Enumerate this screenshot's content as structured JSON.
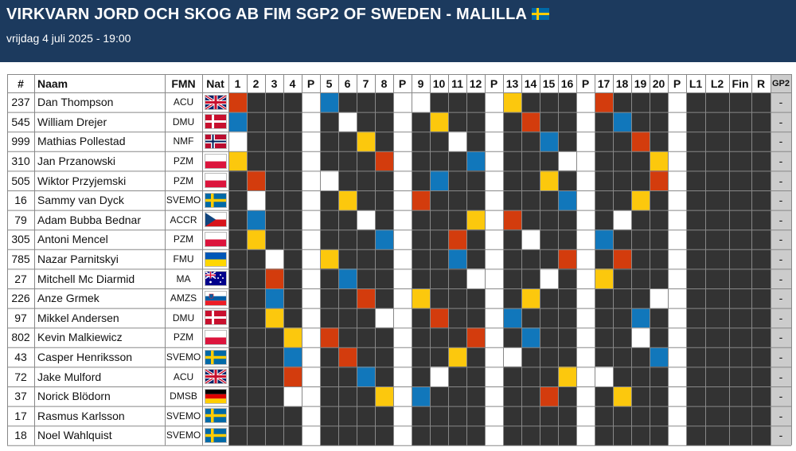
{
  "event": {
    "title": "VIRKVARN JORD OCH SKOG AB FIM SGP2 OF SWEDEN - MALILLA",
    "date": "vrijdag 4 juli 2025 - 19:00"
  },
  "table": {
    "headers": {
      "num": "#",
      "name": "Naam",
      "fmn": "FMN",
      "nat": "Nat",
      "l1": "L1",
      "l2": "L2",
      "fin": "Fin",
      "r": "R",
      "gp2": "GP2"
    },
    "heats": [
      {
        "label": "1",
        "type": "heat"
      },
      {
        "label": "2",
        "type": "heat"
      },
      {
        "label": "3",
        "type": "heat"
      },
      {
        "label": "4",
        "type": "heat"
      },
      {
        "label": "P",
        "type": "pause"
      },
      {
        "label": "5",
        "type": "heat"
      },
      {
        "label": "6",
        "type": "heat"
      },
      {
        "label": "7",
        "type": "heat"
      },
      {
        "label": "8",
        "type": "heat"
      },
      {
        "label": "P",
        "type": "pause"
      },
      {
        "label": "9",
        "type": "heat"
      },
      {
        "label": "10",
        "type": "heat"
      },
      {
        "label": "11",
        "type": "heat"
      },
      {
        "label": "12",
        "type": "heat"
      },
      {
        "label": "P",
        "type": "pause"
      },
      {
        "label": "13",
        "type": "heat"
      },
      {
        "label": "14",
        "type": "heat"
      },
      {
        "label": "15",
        "type": "heat"
      },
      {
        "label": "16",
        "type": "heat"
      },
      {
        "label": "P",
        "type": "pause"
      },
      {
        "label": "17",
        "type": "heat"
      },
      {
        "label": "18",
        "type": "heat"
      },
      {
        "label": "19",
        "type": "heat"
      },
      {
        "label": "20",
        "type": "heat"
      },
      {
        "label": "P",
        "type": "pause"
      }
    ],
    "colors": {
      "R": "#d33c0d",
      "B": "#1177bb",
      "Y": "#fcc80d",
      "W": "#ffffff",
      "D": "#333333",
      "border": "#888888"
    },
    "riders": [
      {
        "num": "237",
        "name": "Dan Thompson",
        "fmn": "ACU",
        "nat": "gb",
        "gate": {
          "1": "R",
          "5": "B",
          "9": "W",
          "13": "Y",
          "17": "R"
        },
        "gp2": "-"
      },
      {
        "num": "545",
        "name": "William Drejer",
        "fmn": "DMU",
        "nat": "dk",
        "gate": {
          "1": "B",
          "6": "W",
          "10": "Y",
          "14": "R",
          "18": "B"
        },
        "gp2": "-"
      },
      {
        "num": "999",
        "name": "Mathias Pollestad",
        "fmn": "NMF",
        "nat": "no",
        "gate": {
          "1": "W",
          "7": "Y",
          "11": "W",
          "15": "B",
          "19": "R"
        },
        "gp2": "-"
      },
      {
        "num": "310",
        "name": "Jan Przanowski",
        "fmn": "PZM",
        "nat": "pl",
        "gate": {
          "1": "Y",
          "8": "R",
          "12": "B",
          "16": "W",
          "20": "Y"
        },
        "gp2": "-"
      },
      {
        "num": "505",
        "name": "Wiktor Przyjemski",
        "fmn": "PZM",
        "nat": "pl",
        "gate": {
          "2": "R",
          "5": "W",
          "10": "B",
          "15": "Y",
          "20": "R"
        },
        "gp2": "-"
      },
      {
        "num": "16",
        "name": "Sammy van Dyck",
        "fmn": "SVEMO",
        "nat": "se",
        "gate": {
          "2": "W",
          "6": "Y",
          "9": "R",
          "16": "B",
          "19": "Y"
        },
        "gp2": "-"
      },
      {
        "num": "79",
        "name": "Adam Bubba Bednar",
        "fmn": "ACCR",
        "nat": "cz",
        "gate": {
          "2": "B",
          "7": "W",
          "12": "Y",
          "13": "R",
          "18": "W"
        },
        "gp2": "-"
      },
      {
        "num": "305",
        "name": "Antoni Mencel",
        "fmn": "PZM",
        "nat": "pl",
        "gate": {
          "2": "Y",
          "8": "B",
          "11": "R",
          "14": "W",
          "17": "B"
        },
        "gp2": "-"
      },
      {
        "num": "785",
        "name": "Nazar Parnitskyi",
        "fmn": "FMU",
        "nat": "ua",
        "gate": {
          "3": "W",
          "5": "Y",
          "11": "B",
          "16": "R",
          "18": "R"
        },
        "gp2": "-"
      },
      {
        "num": "27",
        "name": "Mitchell Mc Diarmid",
        "fmn": "MA",
        "nat": "au",
        "gate": {
          "3": "R",
          "6": "B",
          "12": "W",
          "15": "W",
          "17": "Y"
        },
        "gp2": "-"
      },
      {
        "num": "226",
        "name": "Anze Grmek",
        "fmn": "AMZS",
        "nat": "si",
        "gate": {
          "3": "B",
          "7": "R",
          "9": "Y",
          "14": "Y",
          "20": "W"
        },
        "gp2": "-"
      },
      {
        "num": "97",
        "name": "Mikkel Andersen",
        "fmn": "DMU",
        "nat": "dk",
        "gate": {
          "3": "Y",
          "8": "W",
          "10": "R",
          "13": "B",
          "19": "B"
        },
        "gp2": "-"
      },
      {
        "num": "802",
        "name": "Kevin Malkiewicz",
        "fmn": "PZM",
        "nat": "pl",
        "gate": {
          "4": "Y",
          "5": "R",
          "12": "R",
          "14": "B",
          "19": "W"
        },
        "gp2": "-"
      },
      {
        "num": "43",
        "name": "Casper Henriksson",
        "fmn": "SVEMO",
        "nat": "se",
        "gate": {
          "4": "B",
          "6": "R",
          "11": "Y",
          "13": "W",
          "20": "B"
        },
        "gp2": "-"
      },
      {
        "num": "72",
        "name": "Jake Mulford",
        "fmn": "ACU",
        "nat": "gb",
        "gate": {
          "4": "R",
          "7": "B",
          "10": "W",
          "16": "Y",
          "17": "W"
        },
        "gp2": "-"
      },
      {
        "num": "37",
        "name": "Norick Blödorn",
        "fmn": "DMSB",
        "nat": "de",
        "gate": {
          "4": "W",
          "8": "Y",
          "9": "B",
          "15": "R",
          "18": "Y"
        },
        "gp2": "-"
      },
      {
        "num": "17",
        "name": "Rasmus Karlsson",
        "fmn": "SVEMO",
        "nat": "se",
        "gate": {},
        "gp2": "-"
      },
      {
        "num": "18",
        "name": "Noel Wahlquist",
        "fmn": "SVEMO",
        "nat": "se",
        "gate": {},
        "gp2": "-"
      }
    ]
  }
}
